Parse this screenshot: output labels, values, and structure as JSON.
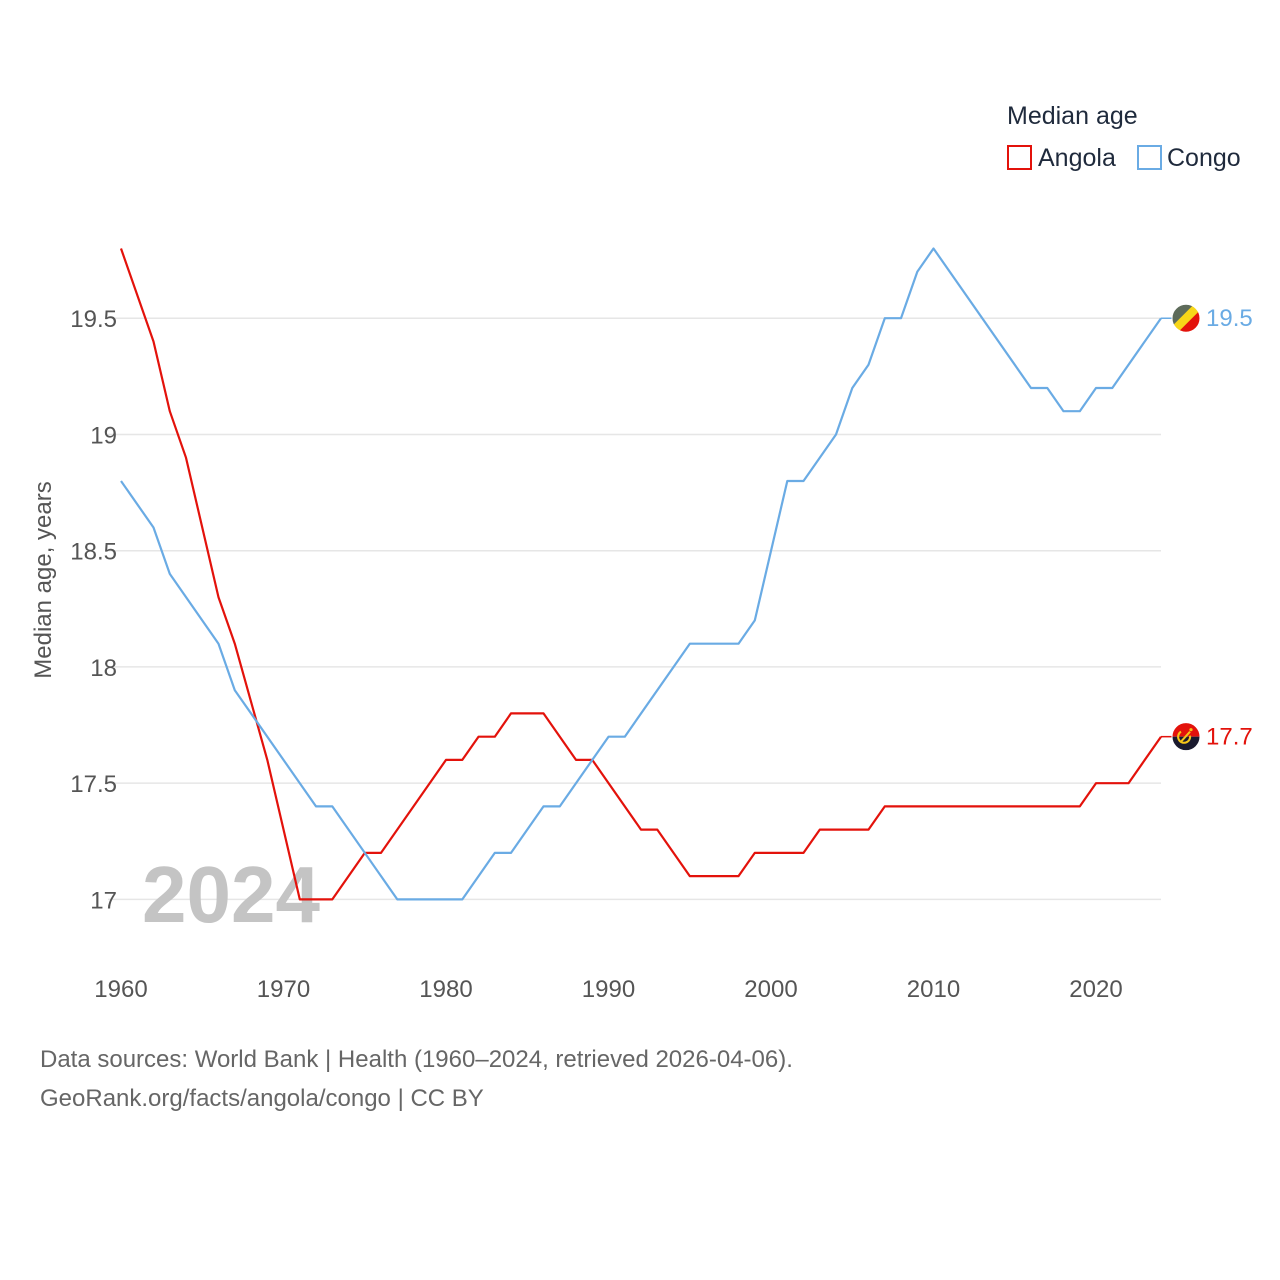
{
  "chart_data": {
    "type": "line",
    "legend_title": "Median age",
    "ylabel": "Median age, years",
    "watermark_year": "2024",
    "xlim": [
      1960,
      2024
    ],
    "ylim": [
      16.75,
      19.8
    ],
    "x_ticks": [
      1960,
      1970,
      1980,
      1990,
      2000,
      2010,
      2020
    ],
    "y_ticks": [
      17,
      17.5,
      18,
      18.5,
      19,
      19.5
    ],
    "legend_position": "top-right",
    "series": [
      {
        "name": "Angola",
        "color": "#e3120b",
        "end_label": "17.7",
        "flag_icon": "angola-flag-icon",
        "points": [
          [
            1960,
            19.8
          ],
          [
            1962,
            19.4
          ],
          [
            1963,
            19.1
          ],
          [
            1964,
            18.9
          ],
          [
            1966,
            18.3
          ],
          [
            1967,
            18.1
          ],
          [
            1969,
            17.6
          ],
          [
            1971,
            17.0
          ],
          [
            1973,
            17.0
          ],
          [
            1975,
            17.2
          ],
          [
            1976,
            17.2
          ],
          [
            1980,
            17.6
          ],
          [
            1981,
            17.6
          ],
          [
            1982,
            17.7
          ],
          [
            1983,
            17.7
          ],
          [
            1984,
            17.8
          ],
          [
            1986,
            17.8
          ],
          [
            1988,
            17.6
          ],
          [
            1989,
            17.6
          ],
          [
            1992,
            17.3
          ],
          [
            1993,
            17.3
          ],
          [
            1995,
            17.1
          ],
          [
            1998,
            17.1
          ],
          [
            1999,
            17.2
          ],
          [
            2002,
            17.2
          ],
          [
            2003,
            17.3
          ],
          [
            2006,
            17.3
          ],
          [
            2007,
            17.4
          ],
          [
            2019,
            17.4
          ],
          [
            2020,
            17.5
          ],
          [
            2022,
            17.5
          ],
          [
            2024,
            17.7
          ]
        ]
      },
      {
        "name": "Congo",
        "color": "#6aabe4",
        "end_label": "19.5",
        "flag_icon": "congo-flag-icon",
        "points": [
          [
            1960,
            18.8
          ],
          [
            1962,
            18.6
          ],
          [
            1963,
            18.4
          ],
          [
            1966,
            18.1
          ],
          [
            1967,
            17.9
          ],
          [
            1972,
            17.4
          ],
          [
            1973,
            17.4
          ],
          [
            1977,
            17.0
          ],
          [
            1981,
            17.0
          ],
          [
            1983,
            17.2
          ],
          [
            1984,
            17.2
          ],
          [
            1986,
            17.4
          ],
          [
            1987,
            17.4
          ],
          [
            1990,
            17.7
          ],
          [
            1991,
            17.7
          ],
          [
            1995,
            18.1
          ],
          [
            1998,
            18.1
          ],
          [
            1999,
            18.2
          ],
          [
            2001,
            18.8
          ],
          [
            2002,
            18.8
          ],
          [
            2004,
            19.0
          ],
          [
            2005,
            19.2
          ],
          [
            2006,
            19.3
          ],
          [
            2007,
            19.5
          ],
          [
            2008,
            19.5
          ],
          [
            2009,
            19.7
          ],
          [
            2010,
            19.8
          ],
          [
            2016,
            19.2
          ],
          [
            2017,
            19.2
          ],
          [
            2018,
            19.1
          ],
          [
            2019,
            19.1
          ],
          [
            2020,
            19.2
          ],
          [
            2021,
            19.2
          ],
          [
            2024,
            19.5
          ]
        ]
      }
    ]
  },
  "footer": {
    "source": "Data sources: World Bank | Health (1960–2024, retrieved 2026-04-06).",
    "credit": "GeoRank.org/facts/angola/congo | CC BY"
  }
}
